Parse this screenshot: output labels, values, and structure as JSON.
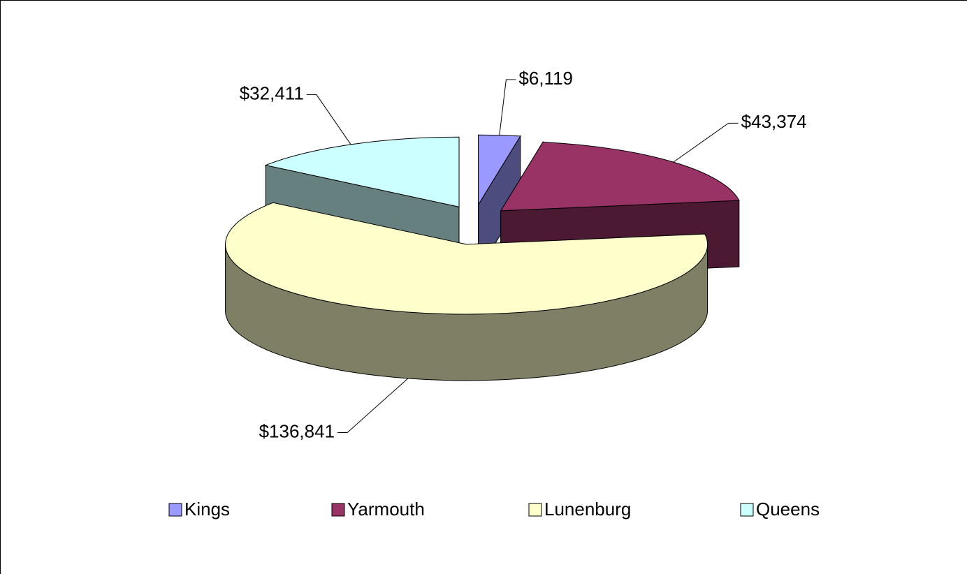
{
  "chart_data": {
    "type": "pie3d",
    "categories": [
      "Kings",
      "Yarmouth",
      "Lunenburg",
      "Queens"
    ],
    "values": [
      6119,
      43374,
      136841,
      32411
    ],
    "value_labels": [
      "$6,119",
      "$43,374",
      "$136,841",
      "$32,411"
    ],
    "colors": [
      "#9999ff",
      "#993366",
      "#ffffcc",
      "#ccffff"
    ],
    "legend": "bottom"
  }
}
